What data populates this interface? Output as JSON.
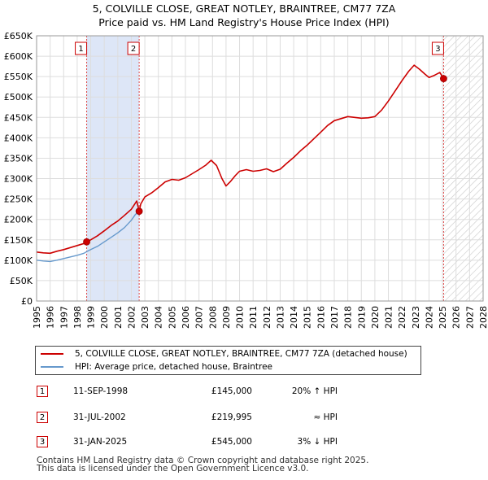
{
  "title": "5, COLVILLE CLOSE, GREAT NOTLEY, BRAINTREE, CM77 7ZA",
  "subtitle": "Price paid vs. HM Land Registry's House Price Index (HPI)",
  "colors": {
    "property": "#cc0000",
    "hpi": "#6699cc",
    "shade": "#dde6f7",
    "grid": "#dddddd"
  },
  "chart_data": {
    "type": "line",
    "xlim": [
      1995,
      2028
    ],
    "ylim": [
      0,
      650000
    ],
    "x_ticks": [
      "1995",
      "1996",
      "1997",
      "1998",
      "1999",
      "2000",
      "2001",
      "2002",
      "2003",
      "2004",
      "2005",
      "2006",
      "2007",
      "2008",
      "2009",
      "2010",
      "2011",
      "2012",
      "2013",
      "2014",
      "2015",
      "2016",
      "2017",
      "2018",
      "2019",
      "2020",
      "2021",
      "2022",
      "2023",
      "2024",
      "2025",
      "2026",
      "2027",
      "2028"
    ],
    "y_ticks": [
      {
        "value": 0,
        "label": "£0"
      },
      {
        "value": 50000,
        "label": "£50K"
      },
      {
        "value": 100000,
        "label": "£100K"
      },
      {
        "value": 150000,
        "label": "£150K"
      },
      {
        "value": 200000,
        "label": "£200K"
      },
      {
        "value": 250000,
        "label": "£250K"
      },
      {
        "value": 300000,
        "label": "£300K"
      },
      {
        "value": 350000,
        "label": "£350K"
      },
      {
        "value": 400000,
        "label": "£400K"
      },
      {
        "value": 450000,
        "label": "£450K"
      },
      {
        "value": 500000,
        "label": "£500K"
      },
      {
        "value": 550000,
        "label": "£550K"
      },
      {
        "value": 600000,
        "label": "£600K"
      },
      {
        "value": 650000,
        "label": "£650K"
      }
    ],
    "shaded_period": [
      1998.7,
      2002.58
    ],
    "forecast_start": 2025.08,
    "series": [
      {
        "name": "5, COLVILLE CLOSE, GREAT NOTLEY, BRAINTREE, CM77 7ZA (detached house)",
        "color": "#cc0000",
        "x": [
          1995.0,
          1995.5,
          1996.0,
          1996.5,
          1997.0,
          1997.5,
          1998.0,
          1998.5,
          1998.7,
          1999.0,
          1999.5,
          2000.0,
          2000.5,
          2001.0,
          2001.5,
          2002.0,
          2002.4,
          2002.58,
          2002.7,
          2003.0,
          2003.5,
          2004.0,
          2004.5,
          2005.0,
          2005.5,
          2006.0,
          2006.5,
          2007.0,
          2007.5,
          2007.9,
          2008.3,
          2008.7,
          2009.0,
          2009.3,
          2009.7,
          2010.0,
          2010.5,
          2011.0,
          2011.5,
          2012.0,
          2012.5,
          2013.0,
          2013.5,
          2014.0,
          2014.5,
          2015.0,
          2015.5,
          2016.0,
          2016.5,
          2017.0,
          2017.5,
          2018.0,
          2018.5,
          2019.0,
          2019.5,
          2020.0,
          2020.5,
          2021.0,
          2021.5,
          2022.0,
          2022.5,
          2022.9,
          2023.3,
          2023.7,
          2024.0,
          2024.4,
          2024.8,
          2025.08
        ],
        "values": [
          120000,
          118000,
          117000,
          122000,
          126000,
          131000,
          136000,
          141000,
          145000,
          150000,
          160000,
          172000,
          185000,
          196000,
          210000,
          225000,
          245000,
          219995,
          238000,
          255000,
          265000,
          278000,
          292000,
          298000,
          296000,
          302000,
          312000,
          322000,
          333000,
          345000,
          332000,
          300000,
          282000,
          292000,
          308000,
          318000,
          322000,
          318000,
          320000,
          324000,
          317000,
          323000,
          338000,
          352000,
          368000,
          382000,
          398000,
          414000,
          430000,
          442000,
          447000,
          452000,
          450000,
          448000,
          449000,
          452000,
          468000,
          490000,
          515000,
          540000,
          563000,
          578000,
          568000,
          556000,
          548000,
          553000,
          560000,
          545000
        ]
      },
      {
        "name": "HPI: Average price, detached house, Braintree",
        "color": "#6699cc",
        "x": [
          1995.0,
          1995.5,
          1996.0,
          1996.5,
          1997.0,
          1997.5,
          1998.0,
          1998.5,
          1998.7,
          1999.0,
          1999.5,
          2000.0,
          2000.5,
          2001.0,
          2001.5,
          2002.0,
          2002.3,
          2002.58
        ],
        "values": [
          100000,
          98000,
          97000,
          100000,
          104000,
          108000,
          112000,
          117000,
          121000,
          126000,
          134000,
          145000,
          156000,
          167000,
          180000,
          198000,
          212000,
          220000
        ]
      }
    ],
    "sales": [
      {
        "label": "1",
        "x": 1998.7,
        "value": 145000
      },
      {
        "label": "2",
        "x": 2002.58,
        "value": 219995
      },
      {
        "label": "3",
        "x": 2025.08,
        "value": 545000
      }
    ]
  },
  "legend": {
    "property": "5, COLVILLE CLOSE, GREAT NOTLEY, BRAINTREE, CM77 7ZA (detached house)",
    "hpi": "HPI: Average price, detached house, Braintree"
  },
  "sales_table": [
    {
      "num": "1",
      "date": "11-SEP-1998",
      "price": "£145,000",
      "hpi": "20% ↑ HPI"
    },
    {
      "num": "2",
      "date": "31-JUL-2002",
      "price": "£219,995",
      "hpi": "≈ HPI"
    },
    {
      "num": "3",
      "date": "31-JAN-2025",
      "price": "£545,000",
      "hpi": "3% ↓ HPI"
    }
  ],
  "footer": {
    "line1": "Contains HM Land Registry data © Crown copyright and database right 2025.",
    "line2": "This data is licensed under the Open Government Licence v3.0."
  }
}
